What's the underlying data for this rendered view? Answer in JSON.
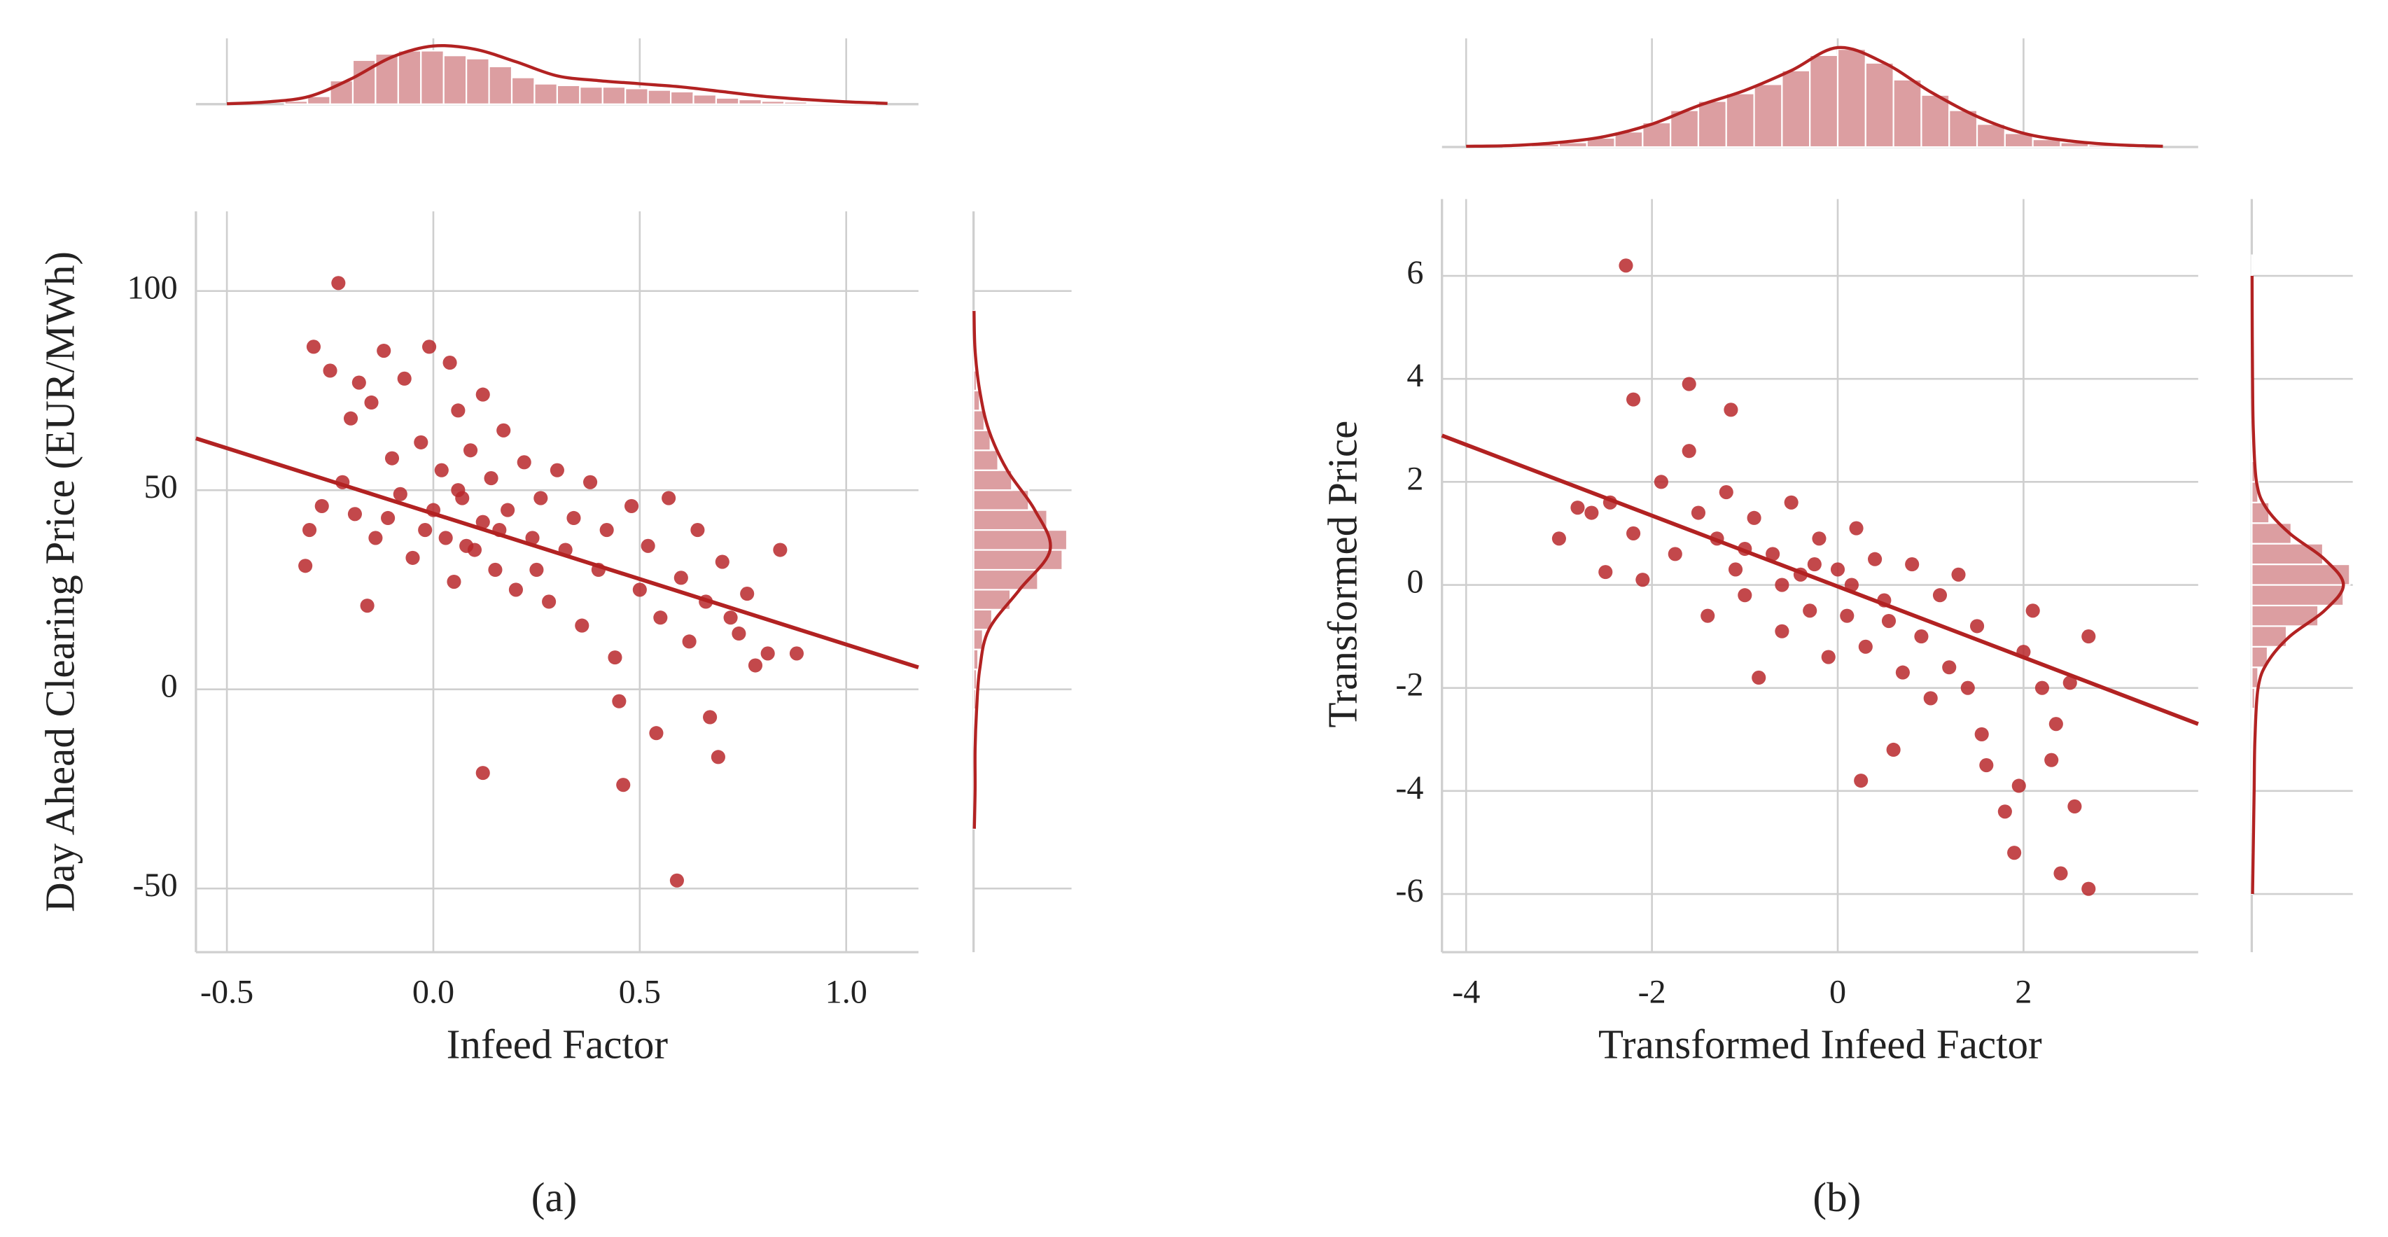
{
  "chart_data": [
    {
      "type": "scatter",
      "caption": "(a)",
      "x_label": "Infeed Factor",
      "y_label": "Day Ahead Clearing Price (EUR/MWh)",
      "color": "#b8282c",
      "grid": true,
      "xlim": [
        -0.575,
        1.175
      ],
      "ylim": [
        -66,
        120
      ],
      "xticks": [
        {
          "value": -0.5,
          "label": "-0.5"
        },
        {
          "value": 0,
          "label": "0.0"
        },
        {
          "value": 0.5,
          "label": "0.5"
        },
        {
          "value": 1,
          "label": "1.0"
        }
      ],
      "yticks": [
        -50,
        0,
        50,
        100
      ],
      "x": [
        -0.23,
        -0.29,
        -0.25,
        -0.18,
        -0.12,
        -0.07,
        -0.01,
        0.04,
        0.06,
        0.12,
        -0.15,
        -0.2,
        -0.3,
        -0.31,
        -0.27,
        -0.22,
        -0.19,
        -0.16,
        -0.14,
        -0.1,
        -0.08,
        -0.05,
        -0.03,
        0.0,
        0.02,
        0.03,
        0.05,
        0.07,
        0.09,
        0.1,
        0.12,
        0.12,
        0.14,
        0.15,
        0.17,
        0.18,
        0.2,
        0.22,
        0.24,
        0.26,
        0.28,
        0.3,
        0.32,
        0.34,
        0.36,
        0.38,
        0.4,
        0.42,
        0.44,
        0.45,
        0.46,
        0.48,
        0.5,
        0.52,
        0.54,
        0.55,
        0.57,
        0.59,
        0.6,
        0.62,
        0.64,
        0.66,
        0.67,
        0.69,
        0.7,
        0.72,
        0.74,
        0.76,
        0.78,
        0.81,
        0.84,
        0.88,
        -0.02,
        0.08,
        0.16,
        -0.11,
        0.25,
        0.06
      ],
      "y": [
        102,
        86,
        80,
        77,
        85,
        78,
        86,
        82,
        70,
        74,
        72,
        68,
        40,
        31,
        46,
        52,
        44,
        21,
        38,
        58,
        49,
        33,
        62,
        45,
        55,
        38,
        27,
        48,
        60,
        35,
        42,
        -21,
        53,
        30,
        65,
        45,
        25,
        57,
        38,
        48,
        22,
        55,
        35,
        43,
        16,
        52,
        30,
        40,
        8,
        -3,
        -24,
        46,
        25,
        36,
        -11,
        18,
        48,
        -48,
        28,
        12,
        40,
        22,
        -7,
        -17,
        32,
        18,
        14,
        24,
        6,
        9,
        35,
        9,
        40,
        36,
        40,
        43,
        30,
        50
      ],
      "fit": {
        "x": [
          -0.575,
          1.175
        ],
        "y": [
          63,
          5.5
        ]
      },
      "x_hist": {
        "bins": [
          -0.36,
          -0.305,
          -0.25,
          -0.195,
          -0.14,
          -0.085,
          -0.03,
          0.025,
          0.08,
          0.135,
          0.19,
          0.245,
          0.3,
          0.355,
          0.41,
          0.465,
          0.52,
          0.575,
          0.63,
          0.685,
          0.74,
          0.795,
          0.85,
          0.905,
          0.96,
          1.015,
          1.07
        ],
        "counts": [
          2,
          5,
          15,
          28,
          32,
          34,
          34,
          31,
          29,
          24,
          17,
          13,
          12,
          11,
          11,
          10,
          9,
          8,
          6,
          4,
          3,
          2,
          1.5,
          1,
          1,
          1
        ]
      },
      "x_kde": {
        "at": [
          -0.5,
          -0.4,
          -0.3,
          -0.2,
          -0.1,
          0,
          0.1,
          0.2,
          0.3,
          0.4,
          0.5,
          0.6,
          0.7,
          0.8,
          0.9,
          1.0,
          1.1
        ],
        "density": [
          0.3,
          1.5,
          5,
          16,
          30,
          37,
          35,
          27,
          18,
          15,
          13,
          11,
          8,
          5,
          3,
          1.5,
          0.5
        ]
      },
      "y_hist": {
        "bins": [
          -35,
          -30,
          -25,
          -20,
          -15,
          -10,
          -5,
          0,
          5,
          10,
          15,
          20,
          25,
          30,
          35,
          40,
          45,
          50,
          55,
          60,
          65,
          70,
          75,
          80,
          85,
          90,
          95
        ],
        "counts": [
          0.3,
          0.3,
          0.5,
          0.5,
          1,
          1,
          1.5,
          2,
          3,
          6,
          12,
          24,
          42,
          58,
          61,
          48,
          36,
          25,
          16,
          11,
          7,
          4,
          2,
          1,
          0.5,
          0.3
        ]
      },
      "y_kde": {
        "at": [
          -35,
          -25,
          -15,
          -5,
          5,
          15,
          25,
          35,
          45,
          55,
          65,
          75,
          85,
          95
        ],
        "density": [
          0.5,
          1,
          1,
          2,
          4,
          10,
          30,
          50,
          40,
          22,
          10,
          4,
          1,
          0.3
        ]
      }
    },
    {
      "type": "scatter",
      "caption": "(b)",
      "x_label": "Transformed Infeed Factor",
      "y_label": "Transformed Price",
      "color": "#b8282c",
      "grid": true,
      "xlim": [
        -4.26,
        3.88
      ],
      "ylim": [
        -7.13,
        7.49
      ],
      "xticks": [
        -4,
        -2,
        0,
        2
      ],
      "yticks": [
        -6,
        -4,
        -2,
        0,
        2,
        4,
        6
      ],
      "x": [
        -2.28,
        -2.2,
        -1.6,
        -1.15,
        -3.0,
        -2.8,
        -2.65,
        -2.5,
        -2.45,
        -2.2,
        -2.1,
        -1.9,
        -1.6,
        -1.75,
        -1.5,
        -1.4,
        -1.3,
        -1.2,
        -1.1,
        -1.0,
        -0.9,
        -0.85,
        -0.7,
        -0.6,
        -0.5,
        -0.4,
        -0.3,
        -0.2,
        -0.1,
        0.0,
        0.1,
        0.2,
        0.25,
        0.3,
        0.4,
        0.5,
        0.6,
        0.7,
        0.8,
        0.9,
        1.0,
        1.1,
        1.2,
        1.3,
        1.4,
        1.5,
        1.55,
        1.6,
        1.8,
        1.9,
        1.95,
        2.0,
        2.1,
        2.2,
        2.3,
        2.35,
        2.4,
        2.5,
        2.55,
        2.7,
        2.7,
        -0.6,
        0.15,
        -0.25,
        0.55,
        -1.0
      ],
      "y": [
        6.2,
        3.6,
        3.9,
        3.4,
        0.9,
        1.5,
        1.4,
        0.25,
        1.6,
        1.0,
        0.1,
        2.0,
        2.6,
        0.6,
        1.4,
        -0.6,
        0.9,
        1.8,
        0.3,
        -0.2,
        1.3,
        -1.8,
        0.6,
        -0.9,
        1.6,
        0.2,
        -0.5,
        0.9,
        -1.4,
        0.3,
        -0.6,
        1.1,
        -3.8,
        -1.2,
        0.5,
        -0.3,
        -3.2,
        -1.7,
        0.4,
        -1.0,
        -2.2,
        -0.2,
        -1.6,
        0.2,
        -2.0,
        -0.8,
        -2.9,
        -3.5,
        -4.4,
        -5.2,
        -3.9,
        -1.3,
        -0.5,
        -2.0,
        -3.4,
        -2.7,
        -5.6,
        -1.9,
        -4.3,
        -5.9,
        -1.0,
        0.0,
        0.0,
        0.4,
        -0.7,
        0.7
      ],
      "fit": {
        "x": [
          -4.26,
          3.88
        ],
        "y": [
          2.9,
          -2.7
        ]
      },
      "x_hist": {
        "bins": [
          -3.6,
          -3.3,
          -3,
          -2.7,
          -2.4,
          -2.1,
          -1.8,
          -1.5,
          -1.2,
          -0.9,
          -0.6,
          -0.3,
          0,
          0.3,
          0.6,
          0.9,
          1.2,
          1.5,
          1.8,
          2.1,
          2.4,
          2.7,
          3,
          3.3
        ],
        "counts": [
          1,
          2,
          3,
          6,
          10,
          16,
          24,
          30,
          35,
          41,
          50,
          60,
          64,
          55,
          44,
          34,
          24,
          15,
          9,
          5,
          3,
          1.5,
          1
        ]
      },
      "x_kde": {
        "at": [
          -4,
          -3.5,
          -3,
          -2.5,
          -2,
          -1.5,
          -1,
          -0.5,
          0,
          0.5,
          1,
          1.5,
          2,
          2.5,
          3,
          3.5
        ],
        "density": [
          0.5,
          1,
          3,
          7,
          15,
          27,
          37,
          50,
          65,
          55,
          36,
          20,
          9,
          4,
          1.5,
          0.5
        ]
      },
      "y_hist": {
        "bins": [
          -6,
          -5.6,
          -5.2,
          -4.8,
          -4.4,
          -4,
          -3.6,
          -3.2,
          -2.8,
          -2.4,
          -2,
          -1.6,
          -1.2,
          -0.8,
          -0.4,
          0,
          0.4,
          0.8,
          1.2,
          1.6,
          2,
          2.4,
          2.8,
          3.2,
          3.6,
          4,
          4.4,
          4.8,
          5.2,
          5.6,
          6,
          6.4
        ],
        "counts": [
          0.3,
          0.3,
          0.3,
          0.4,
          0.5,
          0.5,
          0.6,
          0.8,
          1,
          2,
          4,
          10,
          22,
          42,
          58,
          62,
          45,
          25,
          11,
          4,
          2,
          1,
          0.8,
          0.6,
          0.5,
          0.4,
          0.3,
          0.3,
          0.3,
          0.3,
          0.3
        ]
      },
      "y_kde": {
        "at": [
          -6,
          -5,
          -4,
          -3,
          -2,
          -1.5,
          -1,
          -0.5,
          0,
          0.5,
          1,
          1.5,
          2,
          3,
          4,
          5,
          6
        ],
        "density": [
          0.5,
          1,
          1.5,
          2,
          4,
          10,
          24,
          46,
          58,
          46,
          24,
          9,
          3,
          1,
          0.5,
          0.3,
          0.2
        ]
      }
    }
  ]
}
